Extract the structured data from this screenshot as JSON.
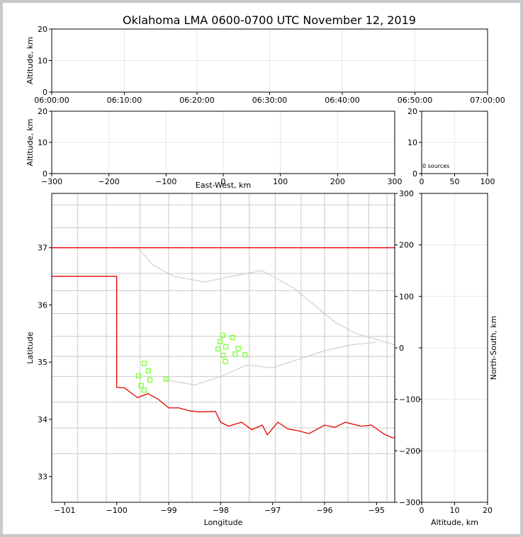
{
  "figure": {
    "title": "Oklahoma LMA 0600-0700 UTC November 12, 2019",
    "sources_annotation": "0 sources"
  },
  "chart_data": [
    {
      "panel": "altitude-time",
      "type": "scatter",
      "title": "Oklahoma LMA 0600-0700 UTC November 12, 2019",
      "xlabel": "",
      "ylabel": "Altitude, km",
      "x_ticks": [
        "06:00:00",
        "06:10:00",
        "06:20:00",
        "06:30:00",
        "06:40:00",
        "06:50:00",
        "07:00:00"
      ],
      "xlim": [
        "06:00:00",
        "07:00:00"
      ],
      "y_ticks": [
        0,
        10,
        20
      ],
      "ylim": [
        0,
        20
      ],
      "grid": true,
      "points": []
    },
    {
      "panel": "east-west-altitude",
      "type": "scatter",
      "xlabel": "East-West, km",
      "ylabel": "Altitude, km",
      "x_ticks": [
        -300,
        -200,
        -100,
        0,
        100,
        200,
        300
      ],
      "xlim": [
        -300,
        300
      ],
      "y_ticks": [
        0,
        10,
        20
      ],
      "ylim": [
        0,
        20
      ],
      "grid": true,
      "points": []
    },
    {
      "panel": "histogram",
      "type": "bar",
      "xlabel": "",
      "ylabel": "",
      "x_ticks": [
        0,
        50,
        100
      ],
      "xlim": [
        0,
        100
      ],
      "y_ticks": [
        0,
        10,
        20
      ],
      "ylim": [
        0,
        20
      ],
      "grid": true,
      "annotation": "0 sources",
      "values": []
    },
    {
      "panel": "plan-view",
      "type": "scatter",
      "xlabel": "Longitude",
      "ylabel": "Latitude",
      "secondary_ylabel": "North-South, km",
      "x_ticks": [
        -101,
        -100,
        -99,
        -98,
        -97,
        -96,
        -95
      ],
      "xlim": [
        -101.25,
        -94.65
      ],
      "y_ticks": [
        33,
        34,
        35,
        36,
        37
      ],
      "ylim": [
        32.55,
        37.95
      ],
      "secondary_y_ticks": [
        -300,
        -200,
        -100,
        0,
        100,
        200,
        300
      ],
      "grid": false,
      "station_color": "#7fff3a",
      "border_color": "#e60000",
      "county_color": "#c8c8c8",
      "stations": [
        {
          "lon": -97.96,
          "lat": 35.47
        },
        {
          "lon": -98.01,
          "lat": 35.36
        },
        {
          "lon": -97.9,
          "lat": 35.27
        },
        {
          "lon": -98.05,
          "lat": 35.23
        },
        {
          "lon": -97.77,
          "lat": 35.43
        },
        {
          "lon": -97.66,
          "lat": 35.24
        },
        {
          "lon": -97.95,
          "lat": 35.12
        },
        {
          "lon": -97.72,
          "lat": 35.14
        },
        {
          "lon": -97.53,
          "lat": 35.13
        },
        {
          "lon": -97.91,
          "lat": 35.01
        },
        {
          "lon": -99.47,
          "lat": 34.98
        },
        {
          "lon": -99.39,
          "lat": 34.85
        },
        {
          "lon": -99.58,
          "lat": 34.76
        },
        {
          "lon": -99.36,
          "lat": 34.69
        },
        {
          "lon": -99.05,
          "lat": 34.7
        },
        {
          "lon": -99.53,
          "lat": 34.59
        },
        {
          "lon": -99.47,
          "lat": 34.51
        }
      ]
    },
    {
      "panel": "altitude-north-south",
      "type": "scatter",
      "xlabel": "Altitude, km",
      "ylabel": "North-South, km",
      "x_ticks": [
        0,
        10,
        20
      ],
      "xlim": [
        0,
        20
      ],
      "y_ticks": [
        -300,
        -200,
        -100,
        0,
        100,
        200,
        300
      ],
      "ylim": [
        -300,
        300
      ],
      "grid": true,
      "points": []
    }
  ]
}
